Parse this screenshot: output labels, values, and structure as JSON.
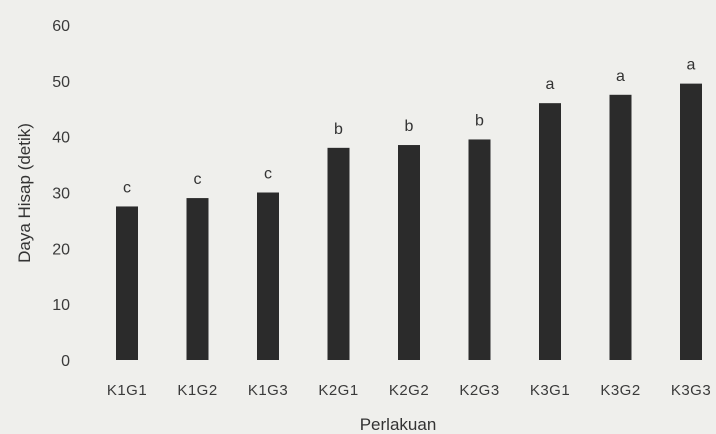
{
  "chart_data": {
    "type": "bar",
    "categories": [
      "K1G1",
      "K1G2",
      "K1G3",
      "K2G1",
      "K2G2",
      "K2G3",
      "K3G1",
      "K3G2",
      "K3G3"
    ],
    "values": [
      27.5,
      29,
      30,
      38,
      38.5,
      39.5,
      46,
      47.5,
      49.5
    ],
    "annotations": [
      "c",
      "c",
      "c",
      "b",
      "b",
      "b",
      "a",
      "a",
      "a"
    ],
    "xlabel": "Perlakuan",
    "ylabel": "Daya Hisap (detik)",
    "ylim": [
      0,
      60
    ],
    "yticks": [
      0,
      10,
      20,
      30,
      40,
      50,
      60
    ],
    "grid": false,
    "bar_color": "#2b2b2b"
  }
}
